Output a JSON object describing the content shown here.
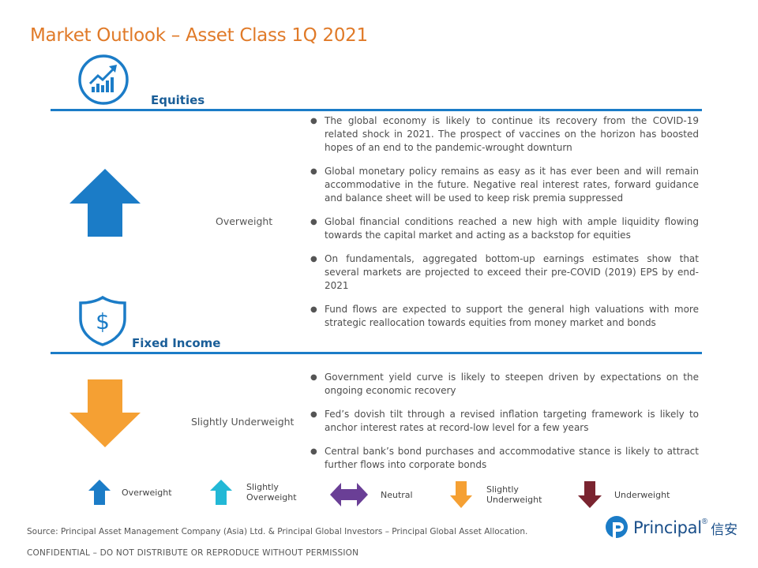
{
  "title": "Market Outlook – Asset Class 1Q 2021",
  "equities": {
    "label": "Equities",
    "rating": "Overweight",
    "bullets": [
      "The global economy is likely to continue its recovery from the COVID-19 related shock in 2021. The prospect of vaccines on the horizon has boosted hopes of an end to the pandemic-wrought downturn",
      "Global monetary policy remains as easy as it has ever been and will remain accommodative in the future. Negative real interest rates, forward guidance and balance sheet will be used to keep risk premia suppressed",
      "Global financial conditions reached a new high with ample liquidity flowing towards the capital market and acting as a backstop for equities",
      "On fundamentals, aggregated bottom-up earnings estimates show that several markets are projected to exceed their pre-COVID (2019) EPS by end-2021",
      "Fund flows are expected to support the general high valuations with more strategic reallocation towards equities from money market and bonds"
    ]
  },
  "fixed_income": {
    "label": "Fixed Income",
    "rating": "Slightly Underweight",
    "bullets": [
      "Government yield curve is likely to steepen driven by expectations on the ongoing economic recovery",
      "Fed’s dovish tilt through a revised inflation targeting framework is likely to anchor interest rates at record-low level for a few years",
      "Central bank’s bond purchases and accommodative stance is likely to attract further flows into corporate bonds"
    ]
  },
  "legend": [
    {
      "label_1": "Overweight",
      "label_2": "",
      "color": "#1b7cc7"
    },
    {
      "label_1": "Slightly",
      "label_2": "Overweight",
      "color": "#22b8d6"
    },
    {
      "label_1": "Neutral",
      "label_2": "",
      "color": "#6a3f96"
    },
    {
      "label_1": "Slightly",
      "label_2": "Underweight",
      "color": "#f5a033"
    },
    {
      "label_1": "Underweight",
      "label_2": "",
      "color": "#7a2430"
    }
  ],
  "source": "Source: Principal Asset Management Company (Asia) Ltd. & Principal Global Investors – Principal Global Asset Allocation.",
  "confidential": "CONFIDENTIAL – DO NOT DISTRIBUTE OR REPRODUCE WITHOUT PERMISSION",
  "logo": {
    "name": "Principal",
    "mark": "®",
    "chinese": "信安"
  },
  "colors": {
    "title": "#e07a28",
    "rule": "#1b7cc7",
    "label": "#1a5e98",
    "up_arrow": "#1b7cc7",
    "down_arrow": "#f5a033"
  }
}
